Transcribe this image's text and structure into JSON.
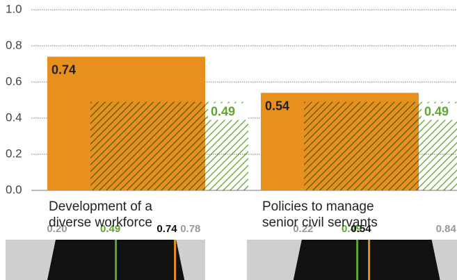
{
  "chart_data": {
    "type": "bar",
    "categories": [
      "Development of a\ndiverse workforce",
      "Policies to manage\nsenior civil servants"
    ],
    "series": [
      {
        "color": "#e8901f",
        "values": [
          0.74,
          0.54
        ]
      },
      {
        "color": "#5fa52e",
        "values": [
          0.49,
          0.49
        ],
        "hatch": true
      }
    ],
    "ranges": {
      "min": {
        "values": [
          0.2,
          0.22
        ],
        "value_labels": [
          "0.20",
          "0.22"
        ]
      },
      "max": {
        "values": [
          0.78,
          0.84
        ]
      }
    },
    "ylim": [
      0,
      1
    ],
    "yticks": [
      {
        "value": 0,
        "label": "0.0"
      },
      0.2,
      0.4,
      0.6,
      0.8,
      {
        "value": 1,
        "label": "1.0"
      }
    ],
    "grid": true
  }
}
